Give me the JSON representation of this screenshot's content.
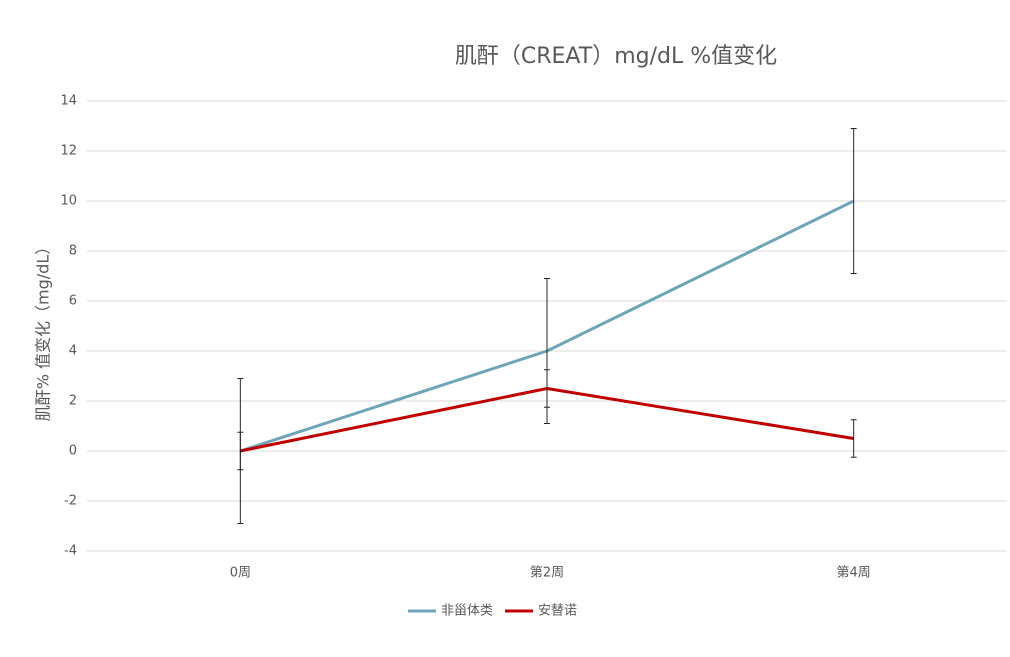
{
  "chart_data": {
    "type": "line",
    "title": "肌酐（CREAT）mg/dL %值变化",
    "y_label": "肌酐% 值变化（mg/dL）",
    "categories": [
      "0周",
      "第2周",
      "第4周"
    ],
    "series": [
      {
        "name": "非甾体类",
        "color": "#6fa5b8",
        "values": [
          0,
          4,
          10
        ],
        "errors": [
          2.9,
          2.9,
          2.9
        ]
      },
      {
        "name": "安替诺",
        "color": "#c00000",
        "values": [
          0,
          2.5,
          0.5
        ],
        "errors": [
          0.75,
          0.75,
          0.75
        ]
      }
    ],
    "ylim": [
      -4,
      14
    ],
    "yticks": [
      -4,
      -2,
      0,
      2,
      4,
      6,
      8,
      10,
      12,
      14
    ],
    "grid": true,
    "legend": "bottom"
  }
}
